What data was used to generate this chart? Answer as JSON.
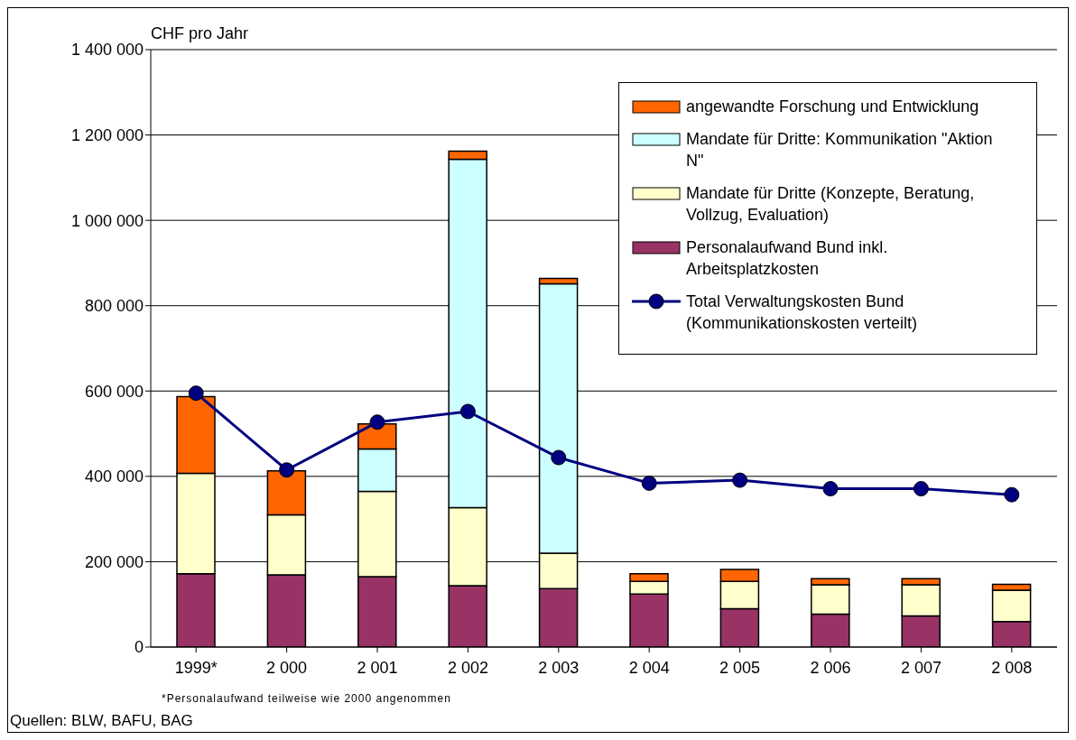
{
  "chart_data": {
    "type": "bar",
    "stacked": true,
    "ylabel": "CHF pro Jahr",
    "categories": [
      "1999*",
      "2 000",
      "2 001",
      "2 002",
      "2 003",
      "2 004",
      "2 005",
      "2 006",
      "2 007",
      "2 008"
    ],
    "series": [
      {
        "name": "Personalaufwand Bund inkl. Arbeitsplatzkosten",
        "color": "#993366",
        "values": [
          172000,
          169000,
          165000,
          144000,
          137000,
          124000,
          90000,
          77000,
          73000,
          60000
        ]
      },
      {
        "name": "Mandate für Dritte (Konzepte, Beratung, Vollzug, Evaluation)",
        "color": "#ffffcc",
        "values": [
          235000,
          141000,
          200000,
          183000,
          83000,
          30000,
          64000,
          69000,
          73000,
          73000
        ]
      },
      {
        "name": "Mandate für Dritte: Kommunikation \"Aktion N\"",
        "color": "#ccffff",
        "values": [
          0,
          0,
          99000,
          816000,
          631000,
          0,
          0,
          0,
          0,
          0
        ]
      },
      {
        "name": "angewandte Forschung und Entwicklung",
        "color": "#ff6600",
        "values": [
          180000,
          103000,
          59000,
          19000,
          13000,
          18000,
          28000,
          14000,
          14000,
          14000
        ]
      },
      {
        "name": "Total Verwaltungskosten Bund (Kommunikationskosten verteilt)",
        "type": "line",
        "color": "#000080",
        "values": [
          595000,
          415000,
          527000,
          552000,
          444000,
          384000,
          391000,
          371000,
          371000,
          357000
        ]
      }
    ],
    "ylim": [
      0,
      1400000
    ],
    "yticks": [
      0,
      {
        "value": 200000,
        "label": "200 000"
      },
      {
        "value": 400000,
        "label": "400 000"
      },
      {
        "value": 600000,
        "label": "600 000"
      },
      {
        "value": 800000,
        "label": "800 000"
      },
      {
        "value": 1000000,
        "label": "1 000 000"
      },
      {
        "value": 1200000,
        "label": "1 200 000"
      },
      {
        "value": 1400000,
        "label": "1 400 000"
      }
    ],
    "grid": "y",
    "legend": "top right",
    "marker": "circle",
    "line_style": "solid",
    "annotations": [
      "*Personalaufwand teilweise wie 2000 angenommen",
      "Quellen: BLW, BAFU, BAG"
    ]
  }
}
